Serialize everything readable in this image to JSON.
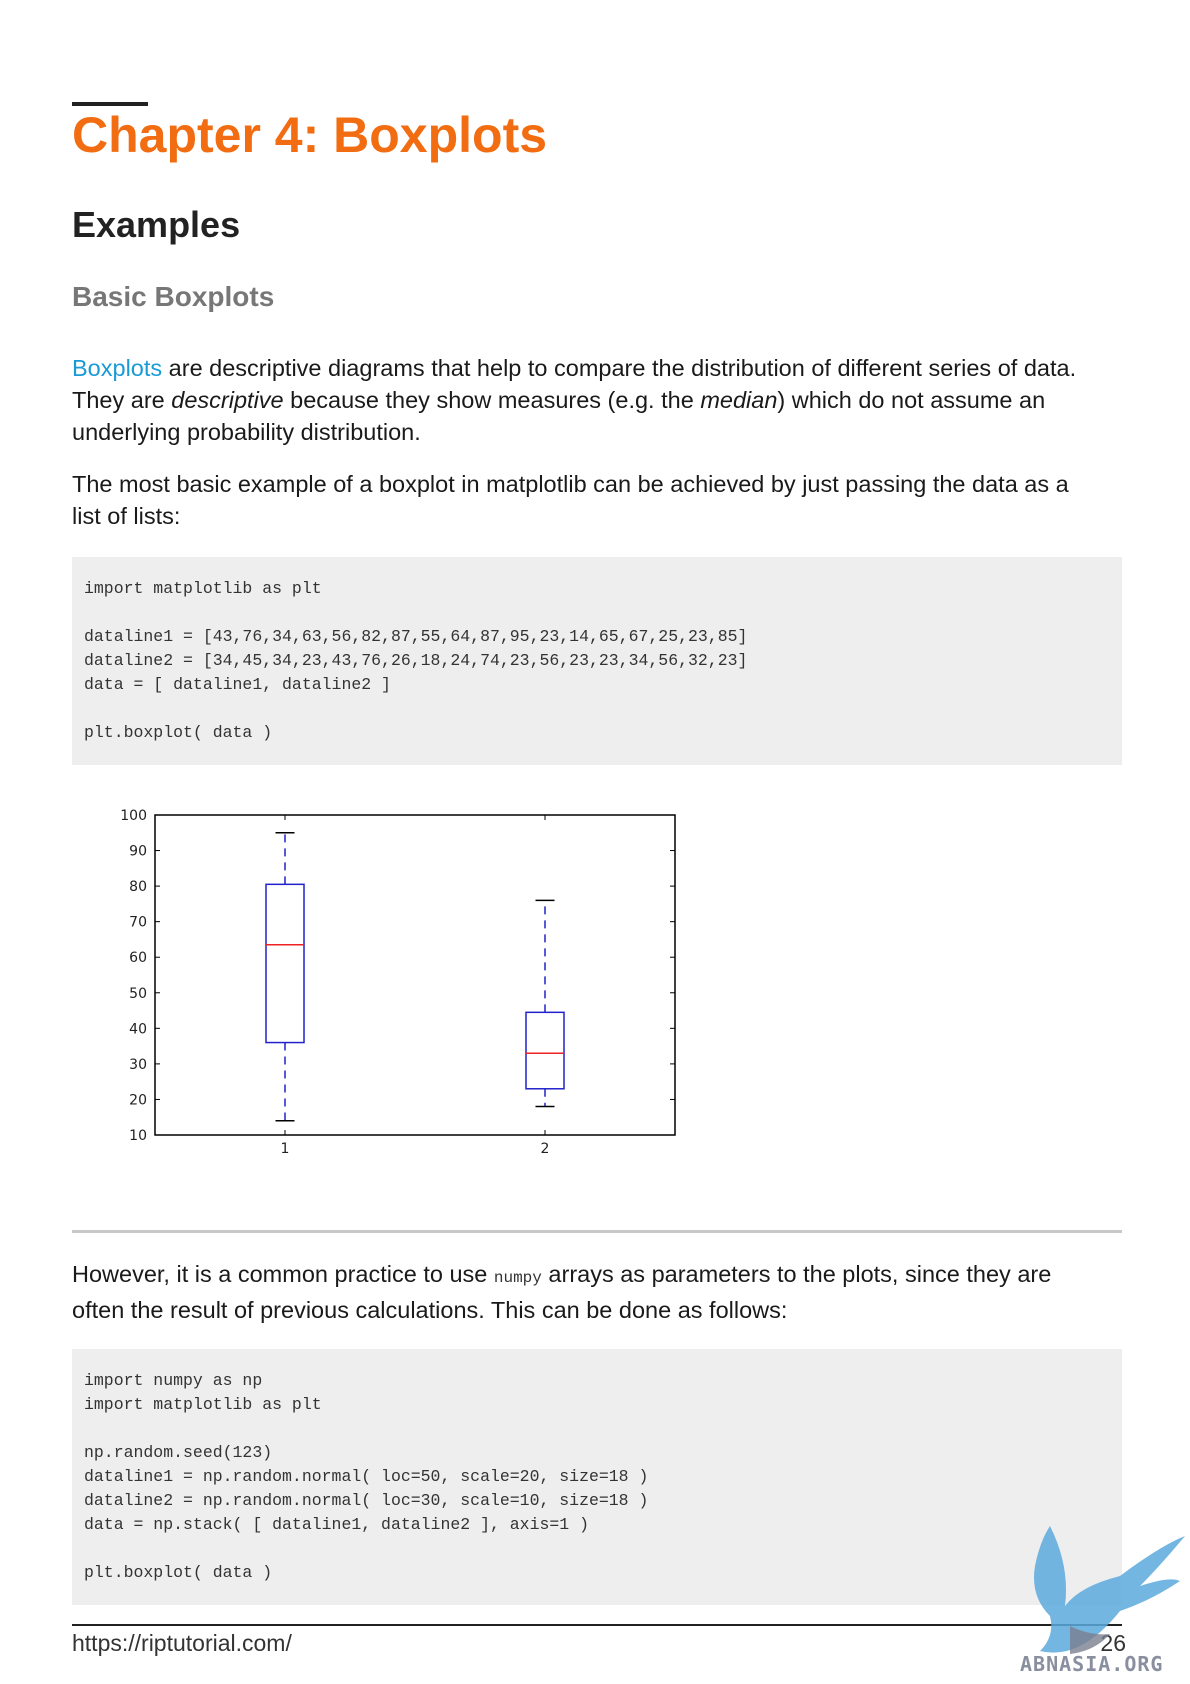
{
  "chapter": {
    "title": "Chapter 4: Boxplots"
  },
  "section": {
    "title": "Examples"
  },
  "subsection": {
    "title": "Basic Boxplots"
  },
  "intro": {
    "link_text": "Boxplots",
    "line1_rest": " are descriptive diagrams that help to compare the distribution of different series of data.",
    "line2_a": "They are ",
    "line2_em": "descriptive",
    "line2_b": " because they show measures (e.g. the ",
    "line2_em2": "median",
    "line2_c": ") which do not assume an",
    "line3": "underlying probability distribution."
  },
  "para2": {
    "line1": "The most basic example of a boxplot in matplotlib can be achieved by just passing the data as a",
    "line2": "list of lists:"
  },
  "code1": [
    "import matplotlib as plt",
    "",
    "dataline1 = [43,76,34,63,56,82,87,55,64,87,95,23,14,65,67,25,23,85]",
    "dataline2 = [34,45,34,23,43,76,26,18,24,74,23,56,23,23,34,56,32,23]",
    "data = [ dataline1, dataline2 ]",
    "",
    "plt.boxplot( data )"
  ],
  "chart_data": {
    "type": "boxplot",
    "categories": [
      "1",
      "2"
    ],
    "ylim": [
      10,
      100
    ],
    "yticks": [
      "10",
      "20",
      "30",
      "40",
      "50",
      "60",
      "70",
      "80",
      "90",
      "100"
    ],
    "boxes": [
      {
        "category": "1",
        "whisker_low": 14,
        "q1": 36,
        "median": 63.5,
        "q3": 80.5,
        "whisker_high": 95
      },
      {
        "category": "2",
        "whisker_low": 18,
        "q1": 23,
        "median": 33,
        "q3": 44.5,
        "whisker_high": 76
      }
    ],
    "colors": {
      "box": "#2222cc",
      "median": "#ee2222",
      "whisker": "#2222cc",
      "cap": "#000000"
    },
    "title": "",
    "xlabel": "",
    "ylabel": ""
  },
  "para3": {
    "a": "However, it is a common practice to use ",
    "code": "numpy",
    "b": " arrays as parameters to the plots, since they are",
    "line2": "often the result of previous calculations. This can be done as follows:"
  },
  "code2": [
    "import numpy as np",
    "import matplotlib as plt",
    "",
    "np.random.seed(123)",
    "dataline1 = np.random.normal( loc=50, scale=20, size=18 )",
    "dataline2 = np.random.normal( loc=30, scale=10, size=18 )",
    "data = np.stack( [ dataline1, dataline2 ], axis=1 )",
    "",
    "plt.boxplot( data )"
  ],
  "footer": {
    "url": "https://riptutorial.com/",
    "page": "26"
  },
  "watermark": {
    "text": "ABNASIA.ORG"
  }
}
